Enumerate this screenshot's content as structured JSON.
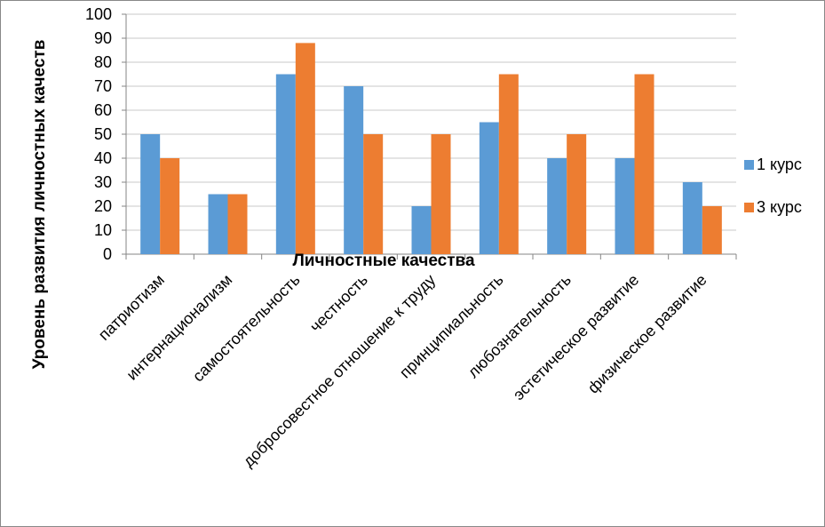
{
  "chart_data": {
    "type": "bar",
    "categories": [
      "патриотизм",
      "интернационализм",
      "самостоятельность",
      "честность",
      "добросовестное отношение к труду",
      "принципиальность",
      "любознательность",
      "эстетическое развитие",
      "физическое развитие"
    ],
    "series": [
      {
        "name": "1 курс",
        "values": [
          50,
          25,
          75,
          70,
          20,
          55,
          40,
          40,
          30
        ],
        "color": "#5B9BD5"
      },
      {
        "name": "3 курс",
        "values": [
          40,
          25,
          88,
          50,
          50,
          75,
          50,
          75,
          20
        ],
        "color": "#ED7D31"
      }
    ],
    "xlabel": "Личностные  качества",
    "ylabel": "Уровень развития личностных качеств",
    "ylim": [
      0,
      100
    ],
    "yticks": [
      "0",
      "10",
      "20",
      "30",
      "40",
      "50",
      "60",
      "70",
      "80",
      "90",
      "100"
    ],
    "grid": true,
    "legend_position": "right"
  }
}
